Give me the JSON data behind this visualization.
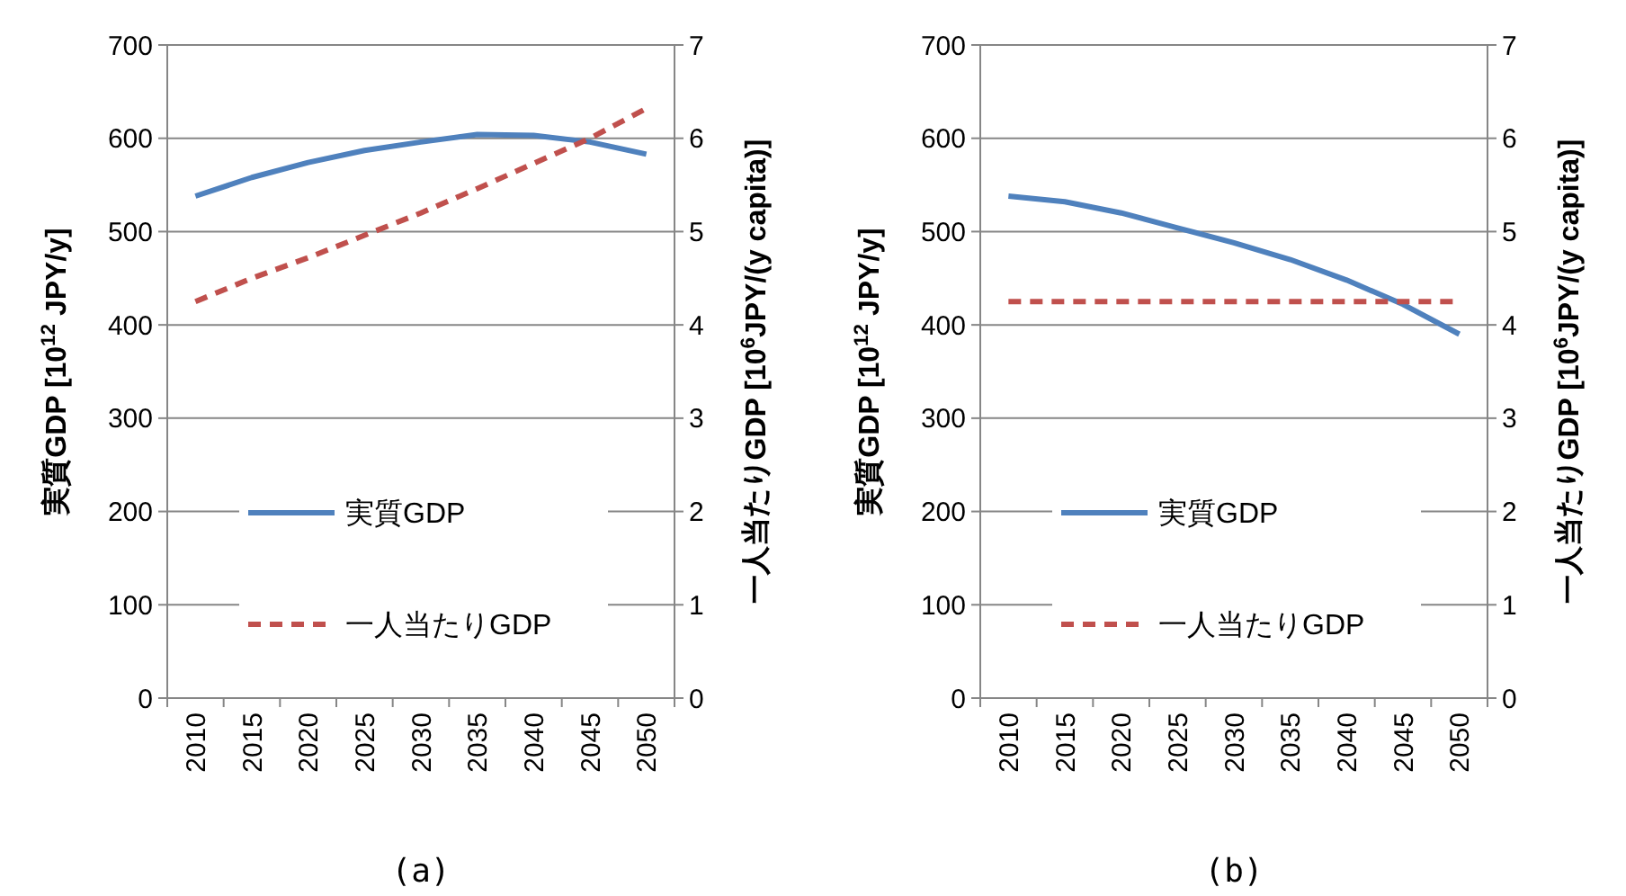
{
  "chart_data": [
    {
      "type": "line",
      "title": "(a)",
      "ylabel": "実質GDP [10$^{12}$ JPY/y]",
      "y2label": "一人当たりGDP [10$^{6}$JPY/(y capita)]",
      "categories": [
        "2010",
        "2015",
        "2020",
        "2025",
        "2030",
        "2035",
        "2040",
        "2045",
        "2050"
      ],
      "ylim": [
        0,
        700
      ],
      "yticks": [
        0,
        100,
        200,
        300,
        400,
        500,
        600,
        700
      ],
      "y2lim": [
        0,
        7
      ],
      "y2ticks": [
        0,
        1,
        2,
        3,
        4,
        5,
        6,
        7
      ],
      "grid": "y",
      "legend": "bottom",
      "series": [
        {
          "name": "実質GDP",
          "color": "#4f81bd",
          "line_style": "solid",
          "values": [
            538,
            558,
            574,
            587,
            596,
            604,
            603,
            596,
            583
          ]
        },
        {
          "name": "一人当たりGDP",
          "color": "#c0504d",
          "line_style": "dashed",
          "axis": "y2",
          "values": [
            4.25,
            4.5,
            4.72,
            4.96,
            5.2,
            5.46,
            5.73,
            6.0,
            6.32
          ]
        }
      ]
    },
    {
      "type": "line",
      "title": "(b)",
      "ylabel": "実質GDP [10$^{12}$ JPY/y]",
      "y2label": "一人当たりGDP [10$^{6}$JPY/(y capita)]",
      "categories": [
        "2010",
        "2015",
        "2020",
        "2025",
        "2030",
        "2035",
        "2040",
        "2045",
        "2050"
      ],
      "ylim": [
        0,
        700
      ],
      "yticks": [
        0,
        100,
        200,
        300,
        400,
        500,
        600,
        700
      ],
      "y2lim": [
        0,
        7
      ],
      "y2ticks": [
        0,
        1,
        2,
        3,
        4,
        5,
        6,
        7
      ],
      "grid": "y",
      "legend": "bottom",
      "series": [
        {
          "name": "実質GDP",
          "color": "#4f81bd",
          "line_style": "solid",
          "values": [
            538,
            532,
            520,
            504,
            488,
            470,
            448,
            422,
            390
          ]
        },
        {
          "name": "一人当たりGDP",
          "color": "#c0504d",
          "line_style": "dashed",
          "axis": "y2",
          "values": [
            4.25,
            4.25,
            4.25,
            4.25,
            4.25,
            4.25,
            4.25,
            4.25,
            4.25
          ]
        }
      ]
    }
  ]
}
